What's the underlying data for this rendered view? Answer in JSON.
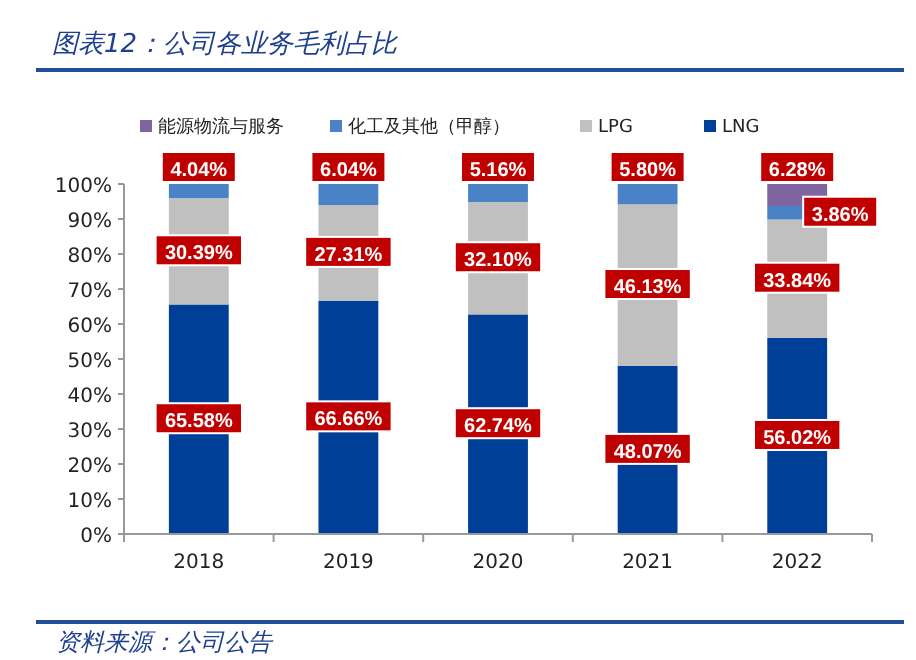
{
  "chart_data": {
    "type": "bar",
    "stacked": true,
    "title": "图表12：公司各业务毛利占比",
    "categories": [
      "2018",
      "2019",
      "2020",
      "2021",
      "2022"
    ],
    "series": [
      {
        "name": "LNG",
        "color": "#003f98",
        "values": [
          65.58,
          66.66,
          62.74,
          48.07,
          56.02
        ],
        "value_labels": [
          "65.58%",
          "66.66%",
          "62.74%",
          "48.07%",
          "56.02%"
        ]
      },
      {
        "name": "LPG",
        "color": "#c0c0c0",
        "values": [
          30.39,
          27.31,
          32.1,
          46.13,
          33.84
        ],
        "value_labels": [
          "30.39%",
          "27.31%",
          "32.10%",
          "46.13%",
          "33.84%"
        ]
      },
      {
        "name": "化工及其他（甲醇）",
        "color": "#4a82c8",
        "values": [
          4.04,
          6.04,
          5.16,
          5.8,
          3.86
        ],
        "value_labels": [
          "4.04%",
          "6.04%",
          "5.16%",
          "5.80%",
          "3.86%"
        ]
      },
      {
        "name": "能源物流与服务",
        "color": "#8064a2",
        "values": [
          null,
          null,
          null,
          null,
          6.28
        ],
        "value_labels": [
          null,
          null,
          null,
          null,
          "6.28%"
        ]
      }
    ],
    "ylim": [
      0,
      100
    ],
    "yticks": [
      {
        "value": 0,
        "label": "0%"
      },
      {
        "value": 10,
        "label": "10%"
      },
      {
        "value": 20,
        "label": "20%"
      },
      {
        "value": 30,
        "label": "30%"
      },
      {
        "value": 40,
        "label": "40%"
      },
      {
        "value": 50,
        "label": "50%"
      },
      {
        "value": 60,
        "label": "60%"
      },
      {
        "value": 70,
        "label": "70%"
      },
      {
        "value": 80,
        "label": "80%"
      },
      {
        "value": 90,
        "label": "90%"
      },
      {
        "value": 100,
        "label": "100%"
      }
    ],
    "legend": "top",
    "grid": false,
    "annotations": [
      "资料来源：公司公告"
    ]
  }
}
